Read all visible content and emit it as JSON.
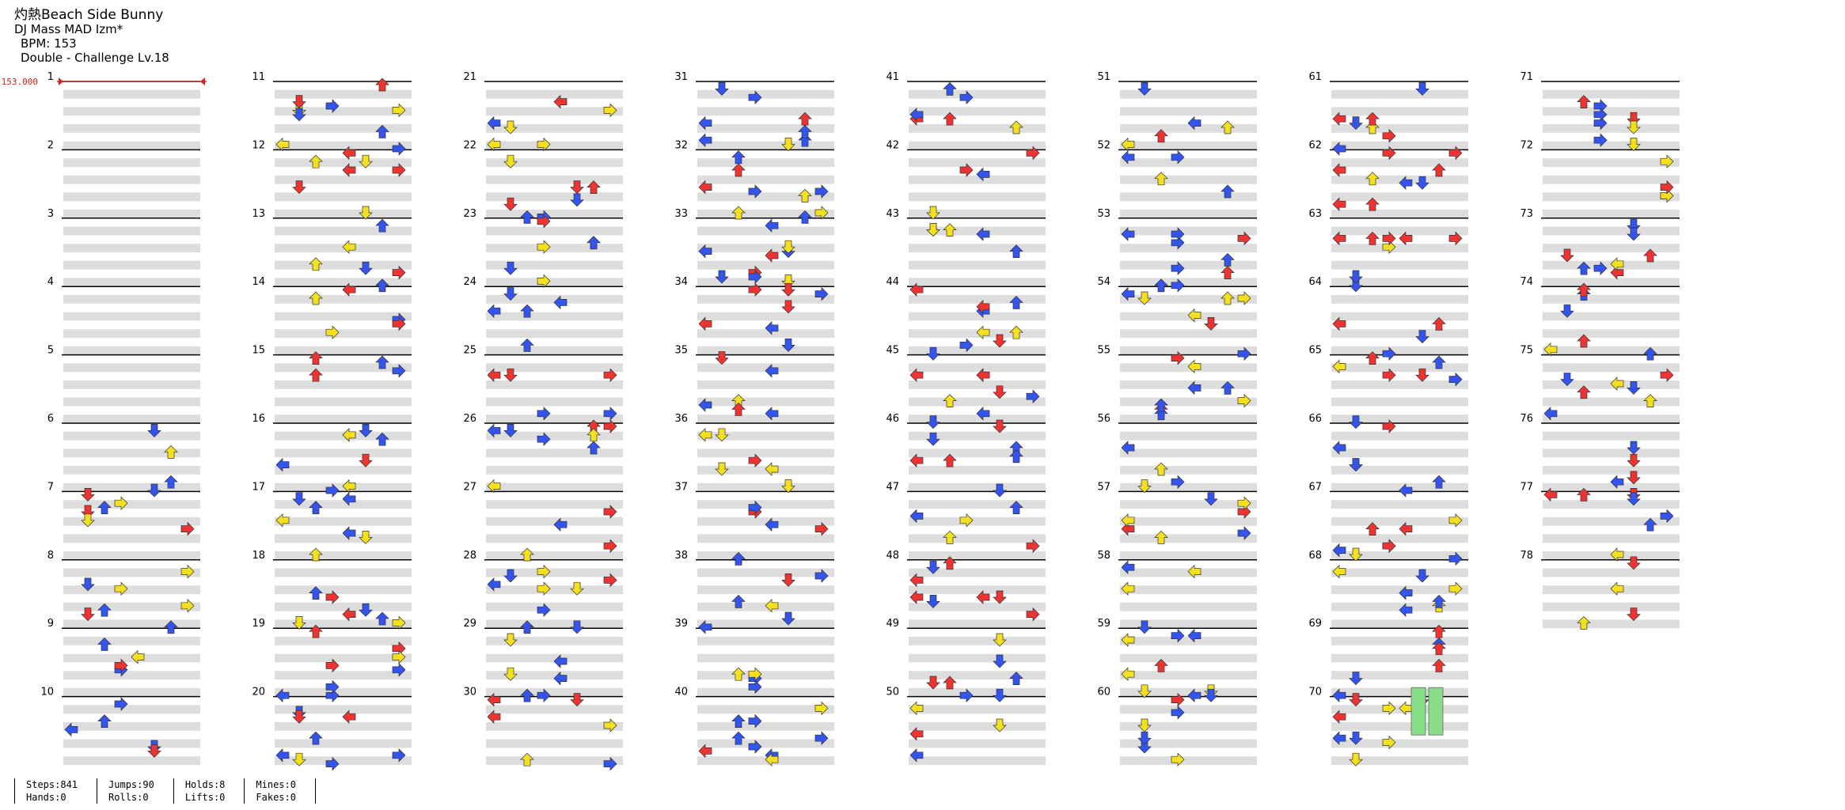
{
  "song": {
    "title": "灼熱Beach Side Bunny",
    "artist": "DJ Mass MAD Izm*",
    "bpm_line": "BPM: 153",
    "difficulty_line": "Double - Challenge Lv.18"
  },
  "bpm_marker": "153.000",
  "measure_count": 78,
  "columns": 8,
  "measures_per_column": 10,
  "colors": {
    "red_arrow": "#ee3333",
    "blue_arrow": "#3355ee",
    "yellow_arrow": "#f5e020",
    "purple_arrow": "#cc44ee",
    "green_arrow": "#88dd88",
    "measure_line": "#000000",
    "beat_band": "#dddddd",
    "bpm_line": "#d42020"
  },
  "icons": [
    "arrow-left-icon",
    "arrow-down-icon",
    "arrow-up-icon",
    "arrow-right-icon",
    "hold-body-icon"
  ],
  "stats": {
    "steps": "Steps:841",
    "hands": "Hands:0",
    "jumps": "Jumps:90",
    "rolls": "Rolls:0",
    "holds": "Holds:8",
    "lifts": "Lifts:0",
    "mines": "Mines:0",
    "fakes": "Fakes:0"
  }
}
